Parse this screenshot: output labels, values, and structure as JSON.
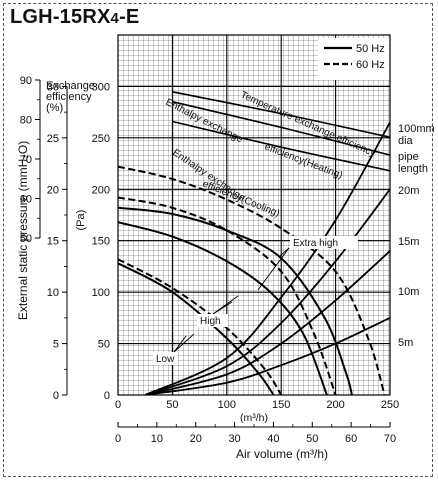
{
  "title": {
    "main": "LGH-15RX",
    "sub": "4",
    "suffix": "-E"
  },
  "chart_data": {
    "type": "line",
    "title": "LGH-15RX4-E",
    "legend": [
      {
        "name": "50 Hz",
        "style": "solid"
      },
      {
        "name": "60 Hz",
        "style": "dashed"
      }
    ],
    "axes": {
      "x_m3h": {
        "label": "(m³/h)",
        "ticks": [
          0,
          50,
          100,
          150,
          200,
          250
        ],
        "range": [
          0,
          250
        ]
      },
      "x_m3min": {
        "label": "Air volume (m³/h)",
        "ticks": [
          0,
          10,
          20,
          30,
          40,
          50,
          60,
          70
        ],
        "range": [
          0,
          70
        ]
      },
      "y_pa": {
        "label": "(Pa)",
        "ticks": [
          0,
          50,
          100,
          150,
          200,
          250,
          300
        ],
        "range": [
          0,
          350
        ]
      },
      "y_mmh2o": {
        "label": "External static pressure (mmH₂O)",
        "ticks": [
          0,
          5,
          10,
          15,
          20,
          25,
          30
        ],
        "range": [
          0,
          35
        ]
      },
      "y_eff": {
        "label": "Exchange efficiency (%)",
        "ticks": [
          50,
          60,
          70,
          80,
          90
        ],
        "range": [
          50,
          90
        ]
      }
    },
    "pipe_label": {
      "line1": "100mm",
      "line2": "dia",
      "line3": "pipe",
      "line4": "length"
    },
    "pipe_lengths": [
      {
        "label": "20m",
        "pa_at": 262
      },
      {
        "label": "15m",
        "pa_at": 198
      },
      {
        "label": "10m",
        "pa_at": 130
      },
      {
        "label": "5m",
        "pa_at": 65
      }
    ],
    "resistance_curves": [
      {
        "name": "20m",
        "points": [
          [
            25,
            0
          ],
          [
            100,
            36
          ],
          [
            150,
            95
          ],
          [
            200,
            170
          ],
          [
            250,
            265
          ]
        ]
      },
      {
        "name": "15m",
        "points": [
          [
            25,
            0
          ],
          [
            100,
            28
          ],
          [
            150,
            70
          ],
          [
            200,
            130
          ],
          [
            250,
            200
          ]
        ]
      },
      {
        "name": "10m",
        "points": [
          [
            25,
            0
          ],
          [
            100,
            20
          ],
          [
            150,
            50
          ],
          [
            200,
            92
          ],
          [
            250,
            140
          ]
        ]
      },
      {
        "name": "5m",
        "points": [
          [
            25,
            0
          ],
          [
            100,
            12
          ],
          [
            150,
            29
          ],
          [
            200,
            50
          ],
          [
            250,
            75
          ]
        ]
      }
    ],
    "fan_curves": [
      {
        "name": "Extra high 50 Hz",
        "style": "solid",
        "points": [
          [
            0,
            182
          ],
          [
            50,
            176
          ],
          [
            100,
            160
          ],
          [
            150,
            133
          ],
          [
            190,
            75
          ],
          [
            210,
            20
          ],
          [
            215,
            0
          ]
        ]
      },
      {
        "name": "Extra high 60 Hz",
        "style": "dashed",
        "points": [
          [
            0,
            222
          ],
          [
            50,
            210
          ],
          [
            100,
            190
          ],
          [
            150,
            162
          ],
          [
            200,
            120
          ],
          [
            230,
            55
          ],
          [
            245,
            0
          ]
        ]
      },
      {
        "name": "High 50 Hz",
        "style": "solid",
        "points": [
          [
            0,
            168
          ],
          [
            50,
            154
          ],
          [
            100,
            130
          ],
          [
            140,
            100
          ],
          [
            170,
            60
          ],
          [
            192,
            0
          ]
        ]
      },
      {
        "name": "High 60 Hz",
        "style": "dashed",
        "points": [
          [
            0,
            192
          ],
          [
            50,
            182
          ],
          [
            100,
            160
          ],
          [
            150,
            120
          ],
          [
            180,
            60
          ],
          [
            200,
            0
          ]
        ]
      },
      {
        "name": "Low 50 Hz",
        "style": "solid",
        "points": [
          [
            0,
            128
          ],
          [
            50,
            100
          ],
          [
            100,
            55
          ],
          [
            130,
            20
          ],
          [
            143,
            0
          ]
        ]
      },
      {
        "name": "Low 60 Hz",
        "style": "dashed",
        "points": [
          [
            0,
            132
          ],
          [
            50,
            104
          ],
          [
            100,
            65
          ],
          [
            135,
            25
          ],
          [
            150,
            0
          ]
        ]
      }
    ],
    "efficiency_curves": [
      {
        "name": "Temperature exchange efficiency",
        "points": [
          [
            50,
            87
          ],
          [
            150,
            81.5
          ],
          [
            250,
            75.5
          ]
        ]
      },
      {
        "name": "Enthalpy exchange efficiency(Heating)",
        "points": [
          [
            50,
            84.5
          ],
          [
            150,
            78
          ],
          [
            250,
            71
          ]
        ]
      },
      {
        "name": "Enthalpy exchange efficiency(Cooling)",
        "points": [
          [
            50,
            79.5
          ],
          [
            150,
            73
          ],
          [
            250,
            67
          ]
        ]
      }
    ],
    "annotations": {
      "temp": "Temperature exchange efficiency",
      "heat1": "Enthalpy exchange",
      "heat2": "efficiency(Heating)",
      "cool1": "Enthalpy exchange",
      "cool2": "efficiency(Cooling)",
      "extra_high": "Extra high",
      "high": "High",
      "low": "Low"
    },
    "grid": true,
    "legend_position": "top-right"
  }
}
